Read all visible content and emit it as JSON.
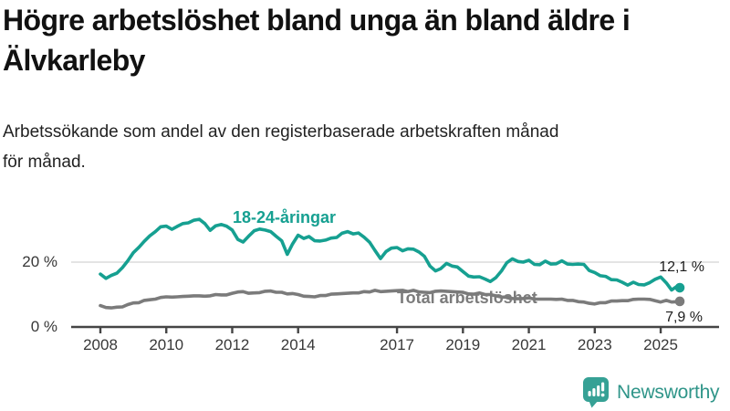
{
  "header": {
    "title_lines": [
      "Högre arbetslöshet bland unga än bland äldre i",
      "Älvkarleby"
    ],
    "subtitle_lines": [
      "Arbetssökande som andel av den registerbaserade arbetskraften månad",
      "för månad."
    ]
  },
  "colors": {
    "youth_line": "#16a091",
    "total_line": "#7b7b7b",
    "gridline": "#dcdcdc",
    "axis": "#454545",
    "axis_text": "#383838",
    "brand_teal": "#2f9589",
    "logo_icon_teal": "#36a195"
  },
  "chart_data": {
    "type": "line",
    "title": "Högre arbetslöshet bland unga än bland äldre i Älvkarleby",
    "subtitle": "Arbetssökande som andel av den registerbaserade arbetskraften månad för månad.",
    "unit": "%",
    "xlim": [
      2008,
      2025.58
    ],
    "ylim": [
      0,
      38
    ],
    "grid": "horizontal",
    "legend_position": "inline-labels-on-lines",
    "x_ticks": [
      2008,
      2010,
      2012,
      2014,
      2017,
      2019,
      2021,
      2023,
      2025
    ],
    "y_ticks": [
      {
        "value": 0,
        "label": "0 %"
      },
      {
        "value": 20,
        "label": "20 %"
      }
    ],
    "series": [
      {
        "name": "18-24-åringar",
        "color": "#16a091",
        "end_value": 12.1,
        "end_label": "12,1 %",
        "points": [
          [
            2008.0,
            16.3
          ],
          [
            2008.17,
            15.0
          ],
          [
            2008.33,
            15.9
          ],
          [
            2008.5,
            16.6
          ],
          [
            2008.67,
            18.3
          ],
          [
            2008.83,
            20.4
          ],
          [
            2009.0,
            22.9
          ],
          [
            2009.17,
            24.6
          ],
          [
            2009.33,
            26.4
          ],
          [
            2009.5,
            28.1
          ],
          [
            2009.67,
            29.4
          ],
          [
            2009.83,
            30.9
          ],
          [
            2010.0,
            31.1
          ],
          [
            2010.17,
            30.1
          ],
          [
            2010.33,
            31.0
          ],
          [
            2010.5,
            31.9
          ],
          [
            2010.67,
            32.1
          ],
          [
            2010.83,
            32.9
          ],
          [
            2011.0,
            33.2
          ],
          [
            2011.17,
            31.9
          ],
          [
            2011.33,
            29.8
          ],
          [
            2011.5,
            31.2
          ],
          [
            2011.67,
            31.6
          ],
          [
            2011.83,
            31.1
          ],
          [
            2012.0,
            29.9
          ],
          [
            2012.17,
            27.0
          ],
          [
            2012.33,
            26.2
          ],
          [
            2012.5,
            28.0
          ],
          [
            2012.67,
            29.7
          ],
          [
            2012.83,
            30.2
          ],
          [
            2013.0,
            29.9
          ],
          [
            2013.17,
            29.4
          ],
          [
            2013.33,
            28.0
          ],
          [
            2013.5,
            26.6
          ],
          [
            2013.67,
            22.4
          ],
          [
            2013.83,
            25.6
          ],
          [
            2014.0,
            28.3
          ],
          [
            2014.17,
            27.3
          ],
          [
            2014.33,
            27.9
          ],
          [
            2014.5,
            26.6
          ],
          [
            2014.67,
            26.5
          ],
          [
            2014.83,
            26.8
          ],
          [
            2015.0,
            27.4
          ],
          [
            2015.17,
            27.6
          ],
          [
            2015.33,
            28.9
          ],
          [
            2015.5,
            29.4
          ],
          [
            2015.67,
            28.7
          ],
          [
            2015.83,
            29.0
          ],
          [
            2016.0,
            27.7
          ],
          [
            2016.17,
            26.1
          ],
          [
            2016.33,
            23.6
          ],
          [
            2016.5,
            21.1
          ],
          [
            2016.67,
            23.3
          ],
          [
            2016.83,
            24.3
          ],
          [
            2017.0,
            24.5
          ],
          [
            2017.17,
            23.5
          ],
          [
            2017.33,
            24.1
          ],
          [
            2017.5,
            24.0
          ],
          [
            2017.67,
            23.1
          ],
          [
            2017.83,
            21.8
          ],
          [
            2018.0,
            18.8
          ],
          [
            2018.17,
            17.3
          ],
          [
            2018.33,
            18.0
          ],
          [
            2018.5,
            19.6
          ],
          [
            2018.67,
            18.8
          ],
          [
            2018.83,
            18.5
          ],
          [
            2019.0,
            17.1
          ],
          [
            2019.17,
            15.7
          ],
          [
            2019.33,
            15.4
          ],
          [
            2019.5,
            15.5
          ],
          [
            2019.67,
            14.8
          ],
          [
            2019.83,
            14.0
          ],
          [
            2020.0,
            15.2
          ],
          [
            2020.17,
            17.3
          ],
          [
            2020.33,
            19.8
          ],
          [
            2020.5,
            21.0
          ],
          [
            2020.67,
            20.2
          ],
          [
            2020.83,
            20.0
          ],
          [
            2021.0,
            20.6
          ],
          [
            2021.17,
            19.3
          ],
          [
            2021.33,
            19.2
          ],
          [
            2021.5,
            20.3
          ],
          [
            2021.67,
            19.4
          ],
          [
            2021.83,
            19.5
          ],
          [
            2022.0,
            20.4
          ],
          [
            2022.17,
            19.4
          ],
          [
            2022.33,
            19.3
          ],
          [
            2022.5,
            19.4
          ],
          [
            2022.67,
            19.3
          ],
          [
            2022.83,
            17.4
          ],
          [
            2023.0,
            16.8
          ],
          [
            2023.17,
            15.8
          ],
          [
            2023.33,
            15.6
          ],
          [
            2023.5,
            14.6
          ],
          [
            2023.67,
            14.5
          ],
          [
            2023.83,
            13.8
          ],
          [
            2024.0,
            12.9
          ],
          [
            2024.17,
            13.8
          ],
          [
            2024.33,
            13.1
          ],
          [
            2024.5,
            13.0
          ],
          [
            2024.67,
            13.7
          ],
          [
            2024.83,
            14.7
          ],
          [
            2025.0,
            15.4
          ],
          [
            2025.17,
            13.6
          ],
          [
            2025.33,
            11.4
          ],
          [
            2025.5,
            12.6
          ],
          [
            2025.58,
            12.1
          ]
        ]
      },
      {
        "name": "Total arbetslöshet",
        "color": "#7b7b7b",
        "end_value": 7.9,
        "end_label": "7,9 %",
        "points": [
          [
            2008.0,
            6.6
          ],
          [
            2008.17,
            6.0
          ],
          [
            2008.33,
            5.9
          ],
          [
            2008.5,
            6.1
          ],
          [
            2008.67,
            6.2
          ],
          [
            2008.83,
            6.9
          ],
          [
            2009.0,
            7.4
          ],
          [
            2009.17,
            7.5
          ],
          [
            2009.33,
            8.2
          ],
          [
            2009.5,
            8.4
          ],
          [
            2009.67,
            8.6
          ],
          [
            2009.83,
            9.1
          ],
          [
            2010.0,
            9.3
          ],
          [
            2010.17,
            9.2
          ],
          [
            2010.33,
            9.3
          ],
          [
            2010.5,
            9.4
          ],
          [
            2010.67,
            9.5
          ],
          [
            2010.83,
            9.6
          ],
          [
            2011.0,
            9.6
          ],
          [
            2011.17,
            9.5
          ],
          [
            2011.33,
            9.6
          ],
          [
            2011.5,
            10.0
          ],
          [
            2011.67,
            9.9
          ],
          [
            2011.83,
            9.9
          ],
          [
            2012.0,
            10.4
          ],
          [
            2012.17,
            10.8
          ],
          [
            2012.33,
            10.9
          ],
          [
            2012.5,
            10.4
          ],
          [
            2012.67,
            10.5
          ],
          [
            2012.83,
            10.6
          ],
          [
            2013.0,
            11.0
          ],
          [
            2013.17,
            11.1
          ],
          [
            2013.33,
            10.7
          ],
          [
            2013.5,
            10.7
          ],
          [
            2013.67,
            10.2
          ],
          [
            2013.83,
            10.3
          ],
          [
            2014.0,
            10.0
          ],
          [
            2014.17,
            9.5
          ],
          [
            2014.33,
            9.4
          ],
          [
            2014.5,
            9.3
          ],
          [
            2014.67,
            9.7
          ],
          [
            2014.83,
            9.7
          ],
          [
            2015.0,
            10.1
          ],
          [
            2015.17,
            10.2
          ],
          [
            2015.33,
            10.3
          ],
          [
            2015.5,
            10.4
          ],
          [
            2015.67,
            10.5
          ],
          [
            2015.83,
            10.5
          ],
          [
            2016.0,
            10.9
          ],
          [
            2016.17,
            10.8
          ],
          [
            2016.33,
            11.3
          ],
          [
            2016.5,
            10.9
          ],
          [
            2016.67,
            11.0
          ],
          [
            2016.83,
            11.1
          ],
          [
            2017.0,
            11.2
          ],
          [
            2017.17,
            11.3
          ],
          [
            2017.33,
            10.9
          ],
          [
            2017.5,
            11.3
          ],
          [
            2017.67,
            10.8
          ],
          [
            2017.83,
            10.7
          ],
          [
            2018.0,
            10.6
          ],
          [
            2018.17,
            11.0
          ],
          [
            2018.33,
            11.1
          ],
          [
            2018.5,
            11.0
          ],
          [
            2018.67,
            10.9
          ],
          [
            2018.83,
            10.8
          ],
          [
            2019.0,
            10.7
          ],
          [
            2019.17,
            10.2
          ],
          [
            2019.33,
            10.1
          ],
          [
            2019.5,
            10.5
          ],
          [
            2019.67,
            10.0
          ],
          [
            2019.83,
            10.0
          ],
          [
            2020.0,
            9.6
          ],
          [
            2020.17,
            9.2
          ],
          [
            2020.33,
            9.2
          ],
          [
            2020.5,
            8.8
          ],
          [
            2020.67,
            8.7
          ],
          [
            2020.83,
            8.8
          ],
          [
            2021.0,
            9.0
          ],
          [
            2021.17,
            8.6
          ],
          [
            2021.33,
            8.6
          ],
          [
            2021.5,
            8.6
          ],
          [
            2021.67,
            8.6
          ],
          [
            2021.83,
            8.5
          ],
          [
            2022.0,
            8.6
          ],
          [
            2022.17,
            8.2
          ],
          [
            2022.33,
            8.2
          ],
          [
            2022.5,
            7.8
          ],
          [
            2022.67,
            7.7
          ],
          [
            2022.83,
            7.3
          ],
          [
            2023.0,
            7.1
          ],
          [
            2023.17,
            7.5
          ],
          [
            2023.33,
            7.5
          ],
          [
            2023.5,
            8.0
          ],
          [
            2023.67,
            8.0
          ],
          [
            2023.83,
            8.1
          ],
          [
            2024.0,
            8.1
          ],
          [
            2024.17,
            8.5
          ],
          [
            2024.33,
            8.6
          ],
          [
            2024.5,
            8.6
          ],
          [
            2024.67,
            8.5
          ],
          [
            2024.83,
            8.1
          ],
          [
            2025.0,
            7.7
          ],
          [
            2025.17,
            8.2
          ],
          [
            2025.33,
            7.7
          ],
          [
            2025.5,
            7.8
          ],
          [
            2025.58,
            7.9
          ]
        ]
      }
    ]
  },
  "footer": {
    "brand": "Newsworthy"
  }
}
